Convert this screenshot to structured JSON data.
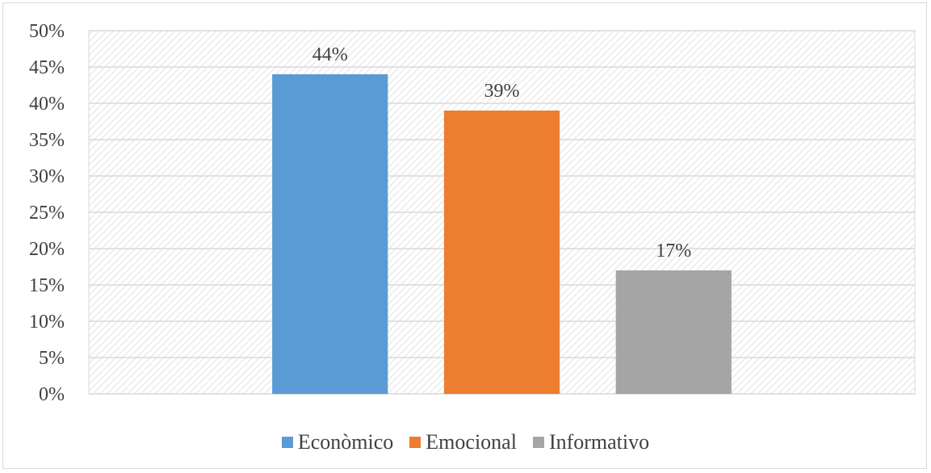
{
  "chart_data": {
    "type": "bar",
    "categories": [
      "Econòmico",
      "Emocional",
      "Informativo"
    ],
    "values": [
      44,
      39,
      17
    ],
    "value_labels": [
      "44%",
      "39%",
      "17%"
    ],
    "colors": [
      "#5b9bd5",
      "#ed7d31",
      "#a5a5a5"
    ],
    "ylim": [
      0,
      50
    ],
    "yticks": [
      {
        "value": 0,
        "label": "0%"
      },
      {
        "value": 5,
        "label": "5%"
      },
      {
        "value": 10,
        "label": "10%"
      },
      {
        "value": 15,
        "label": "15%"
      },
      {
        "value": 20,
        "label": "20%"
      },
      {
        "value": 25,
        "label": "25%"
      },
      {
        "value": 30,
        "label": "30%"
      },
      {
        "value": 35,
        "label": "35%"
      },
      {
        "value": 40,
        "label": "40%"
      },
      {
        "value": 45,
        "label": "45%"
      },
      {
        "value": 50,
        "label": "50%"
      }
    ],
    "grid": true,
    "legend_position": "bottom",
    "title": "",
    "xlabel": "",
    "ylabel": ""
  }
}
